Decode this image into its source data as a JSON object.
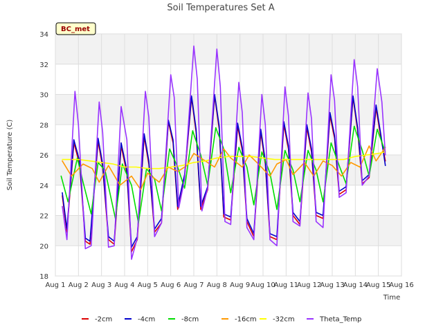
{
  "chart_data": {
    "type": "line",
    "title": "Soil Temperatures Set A",
    "xlabel": "Time",
    "ylabel": "Soil Temperature (C)",
    "station_label": "BC_met",
    "xlim": [
      1,
      16
    ],
    "ylim": [
      18,
      34
    ],
    "x_ticks": [
      {
        "value": 1,
        "label": "Aug 1"
      },
      {
        "value": 2,
        "label": "Aug 2"
      },
      {
        "value": 3,
        "label": "Aug 3"
      },
      {
        "value": 4,
        "label": "Aug 4"
      },
      {
        "value": 5,
        "label": "Aug 5"
      },
      {
        "value": 6,
        "label": "Aug 6"
      },
      {
        "value": 7,
        "label": "Aug 7"
      },
      {
        "value": 8,
        "label": "Aug 8"
      },
      {
        "value": 9,
        "label": "Aug 9"
      },
      {
        "value": 10,
        "label": "Aug 10"
      },
      {
        "value": 11,
        "label": "Aug 11"
      },
      {
        "value": 12,
        "label": "Aug 12"
      },
      {
        "value": 13,
        "label": "Aug 13"
      },
      {
        "value": 14,
        "label": "Aug 14"
      },
      {
        "value": 15,
        "label": "Aug 15"
      },
      {
        "value": 16,
        "label": "Aug 16"
      }
    ],
    "y_ticks": [
      18,
      20,
      22,
      24,
      26,
      28,
      30,
      32,
      34
    ],
    "grid": true,
    "legend_position": "bottom",
    "series": [
      {
        "name": "-2cm",
        "color": "#dd0000",
        "x": [
          1.3,
          1.5,
          1.8,
          2.05,
          2.3,
          2.5,
          2.85,
          3.05,
          3.3,
          3.55,
          3.85,
          4.1,
          4.3,
          4.55,
          4.85,
          5.05,
          5.3,
          5.6,
          5.9,
          6.1,
          6.3,
          6.6,
          6.9,
          7.1,
          7.3,
          7.6,
          7.9,
          8.1,
          8.3,
          8.6,
          8.9,
          9.1,
          9.3,
          9.6,
          9.9,
          10.1,
          10.3,
          10.6,
          10.9,
          11.1,
          11.3,
          11.6,
          11.9,
          12.1,
          12.3,
          12.6,
          12.9,
          13.1,
          13.3,
          13.6,
          13.9,
          14.1,
          14.3,
          14.6,
          14.9,
          15.1,
          15.3
        ],
        "y": [
          23.3,
          20.9,
          26.8,
          25.4,
          20.3,
          20.1,
          26.9,
          25.2,
          20.4,
          20.1,
          26.6,
          24.8,
          19.6,
          20.4,
          27.2,
          25.4,
          20.9,
          21.5,
          28.2,
          26.8,
          22.4,
          24.5,
          29.8,
          27.5,
          22.4,
          23.7,
          29.9,
          27.7,
          21.9,
          21.7,
          27.9,
          26.3,
          21.6,
          20.6,
          27.5,
          25.4,
          20.6,
          20.4,
          28.0,
          26.4,
          22.0,
          21.4,
          27.8,
          26.2,
          22.0,
          21.8,
          28.6,
          27.1,
          23.4,
          23.7,
          29.8,
          27.6,
          24.1,
          24.5,
          29.1,
          27.2,
          25.6
        ]
      },
      {
        "name": "-4cm",
        "color": "#0000cc",
        "x": [
          1.3,
          1.5,
          1.8,
          2.05,
          2.3,
          2.5,
          2.85,
          3.05,
          3.3,
          3.55,
          3.85,
          4.1,
          4.3,
          4.55,
          4.85,
          5.05,
          5.3,
          5.6,
          5.9,
          6.1,
          6.3,
          6.6,
          6.9,
          7.1,
          7.3,
          7.6,
          7.9,
          8.1,
          8.3,
          8.6,
          8.9,
          9.1,
          9.3,
          9.6,
          9.9,
          10.1,
          10.3,
          10.6,
          10.9,
          11.1,
          11.3,
          11.6,
          11.9,
          12.1,
          12.3,
          12.6,
          12.9,
          13.1,
          13.3,
          13.6,
          13.9,
          14.1,
          14.3,
          14.6,
          14.9,
          15.1,
          15.3
        ],
        "y": [
          23.5,
          21.1,
          27.0,
          25.6,
          20.5,
          20.3,
          27.1,
          25.4,
          20.6,
          20.3,
          26.8,
          25.0,
          19.9,
          20.6,
          27.4,
          25.6,
          21.1,
          21.8,
          28.3,
          27.0,
          22.6,
          24.7,
          29.9,
          27.7,
          22.6,
          23.9,
          30.0,
          27.9,
          22.1,
          21.9,
          28.1,
          26.5,
          21.8,
          20.8,
          27.7,
          25.6,
          20.8,
          20.6,
          28.2,
          26.6,
          22.2,
          21.6,
          28.0,
          26.4,
          22.2,
          22.0,
          28.8,
          27.3,
          23.6,
          23.9,
          29.9,
          27.8,
          24.3,
          24.7,
          29.3,
          27.4,
          25.3
        ]
      },
      {
        "name": "-8cm",
        "color": "#00dd00",
        "x": [
          1.25,
          1.55,
          1.95,
          2.2,
          2.55,
          2.85,
          3.15,
          3.6,
          3.9,
          4.3,
          4.6,
          4.95,
          5.3,
          5.6,
          5.95,
          6.3,
          6.6,
          6.95,
          7.3,
          7.6,
          7.95,
          8.3,
          8.6,
          8.95,
          9.3,
          9.6,
          9.95,
          10.3,
          10.6,
          10.95,
          11.3,
          11.6,
          11.95,
          12.3,
          12.6,
          12.95,
          13.3,
          13.6,
          13.95,
          14.3,
          14.6,
          14.95,
          15.3
        ],
        "y": [
          24.6,
          22.9,
          25.8,
          24.2,
          22.1,
          25.5,
          25.0,
          21.8,
          25.4,
          24.0,
          21.5,
          25.1,
          24.4,
          22.3,
          26.4,
          25.2,
          23.8,
          27.6,
          26.0,
          24.0,
          27.8,
          26.4,
          23.5,
          26.5,
          25.2,
          22.7,
          26.2,
          24.8,
          22.4,
          26.3,
          25.0,
          22.9,
          26.3,
          25.0,
          22.9,
          26.8,
          25.3,
          24.1,
          27.9,
          26.3,
          24.6,
          27.7,
          26.2
        ]
      },
      {
        "name": "-16cm",
        "color": "#ff9900",
        "x": [
          1.3,
          1.7,
          2.2,
          2.6,
          2.9,
          3.3,
          3.8,
          4.3,
          4.7,
          5.0,
          5.5,
          5.9,
          6.3,
          6.7,
          7.0,
          7.4,
          7.9,
          8.3,
          8.6,
          9.1,
          9.4,
          9.8,
          10.3,
          10.6,
          11.0,
          11.3,
          11.8,
          12.2,
          12.6,
          13.0,
          13.4,
          13.8,
          14.2,
          14.6,
          14.9,
          15.3
        ],
        "y": [
          25.6,
          24.6,
          25.4,
          25.1,
          24.2,
          25.3,
          24.0,
          24.6,
          23.7,
          24.8,
          24.2,
          25.2,
          24.9,
          25.3,
          26.1,
          25.7,
          25.2,
          26.4,
          25.8,
          25.2,
          26.0,
          25.4,
          24.6,
          25.4,
          25.7,
          24.7,
          25.5,
          24.6,
          25.6,
          25.3,
          24.6,
          25.5,
          25.2,
          26.6,
          25.6,
          26.5
        ]
      },
      {
        "name": "-32cm",
        "color": "#ffff00",
        "x": [
          1.3,
          2.0,
          2.5,
          3.0,
          3.5,
          4.0,
          4.5,
          5.0,
          5.5,
          6.0,
          6.5,
          7.0,
          7.5,
          8.0,
          8.5,
          9.0,
          9.5,
          10.0,
          10.5,
          11.0,
          11.5,
          12.0,
          12.5,
          13.0,
          13.5,
          14.0,
          14.5,
          15.0,
          15.3
        ],
        "y": [
          25.7,
          25.7,
          25.6,
          25.5,
          25.4,
          25.2,
          25.2,
          25.1,
          25.1,
          25.2,
          25.3,
          25.5,
          25.6,
          25.8,
          25.9,
          25.9,
          25.9,
          25.8,
          25.7,
          25.7,
          25.7,
          25.7,
          25.7,
          25.7,
          25.7,
          25.9,
          26.0,
          26.1,
          26.2
        ]
      },
      {
        "name": "Theta_Temp",
        "color": "#9933ff",
        "x": [
          1.3,
          1.5,
          1.85,
          2.0,
          2.3,
          2.55,
          2.9,
          3.05,
          3.3,
          3.55,
          3.85,
          4.1,
          4.3,
          4.55,
          4.9,
          5.05,
          5.3,
          5.6,
          6.0,
          6.15,
          6.35,
          6.6,
          7.0,
          7.15,
          7.35,
          7.6,
          8.0,
          8.15,
          8.35,
          8.6,
          8.95,
          9.1,
          9.3,
          9.6,
          9.95,
          10.1,
          10.3,
          10.6,
          10.95,
          11.1,
          11.3,
          11.6,
          11.95,
          12.1,
          12.3,
          12.6,
          12.95,
          13.1,
          13.3,
          13.6,
          13.95,
          14.1,
          14.3,
          14.6,
          14.95,
          15.15,
          15.3
        ],
        "y": [
          22.6,
          20.4,
          30.2,
          28.0,
          19.8,
          20.0,
          29.5,
          27.5,
          19.9,
          20.0,
          29.2,
          27.0,
          19.1,
          20.5,
          30.2,
          28.5,
          20.6,
          21.5,
          31.3,
          29.8,
          22.5,
          24.4,
          33.2,
          31.0,
          22.3,
          23.8,
          33.0,
          30.5,
          21.6,
          21.4,
          30.8,
          28.8,
          21.2,
          20.4,
          30.0,
          28.0,
          20.4,
          20.0,
          30.5,
          28.6,
          21.6,
          21.3,
          30.1,
          28.4,
          21.6,
          21.2,
          31.3,
          29.6,
          23.2,
          23.5,
          32.3,
          30.5,
          24.0,
          24.6,
          31.7,
          29.5,
          26.0
        ]
      }
    ]
  }
}
